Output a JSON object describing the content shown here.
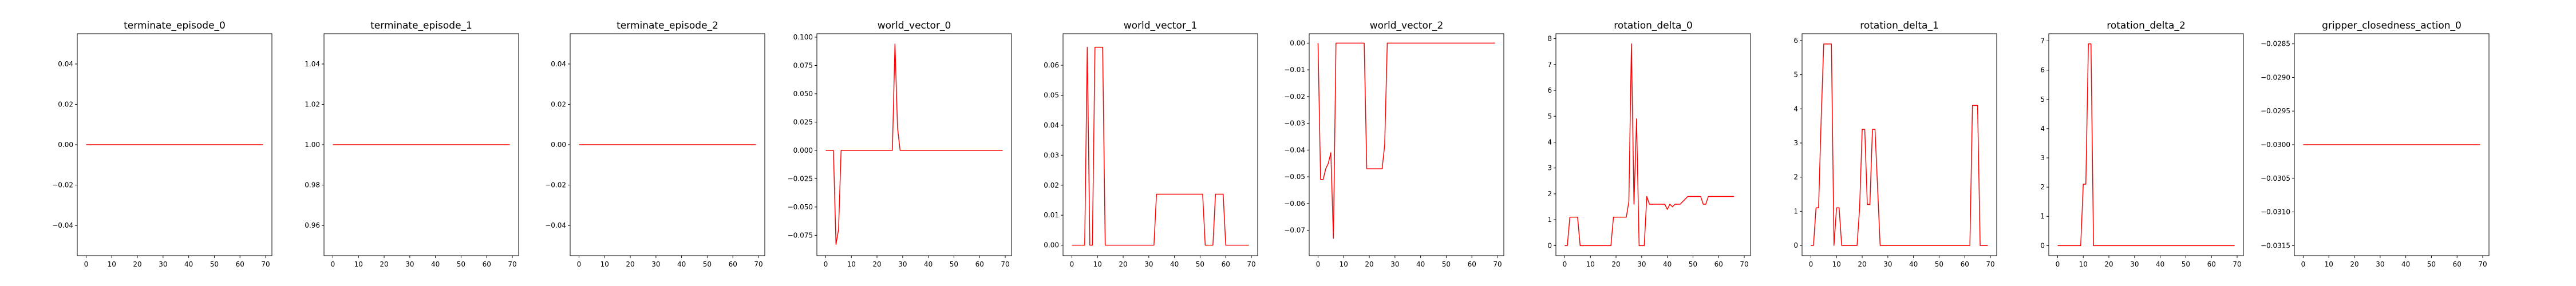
{
  "figure": {
    "line_color": "#ff0000"
  },
  "chart_data": [
    {
      "type": "line",
      "title": "terminate_episode_0",
      "xlabel": "",
      "ylabel": "",
      "xlim": [
        -3.45,
        72.45
      ],
      "ylim": [
        -0.055,
        0.055
      ],
      "xticks": [
        0,
        10,
        20,
        30,
        40,
        50,
        60,
        70
      ],
      "yticks": [
        -0.04,
        -0.02,
        0.0,
        0.02,
        0.04
      ],
      "ytick_labels": [
        "−0.04",
        "−0.02",
        "0.00",
        "0.02",
        "0.04"
      ],
      "series": [
        {
          "points": [
            [
              0,
              0
            ],
            [
              69,
              0
            ]
          ]
        }
      ]
    },
    {
      "type": "line",
      "title": "terminate_episode_1",
      "xlabel": "",
      "ylabel": "",
      "xlim": [
        -3.45,
        72.45
      ],
      "ylim": [
        0.945,
        1.055
      ],
      "xticks": [
        0,
        10,
        20,
        30,
        40,
        50,
        60,
        70
      ],
      "yticks": [
        0.96,
        0.98,
        1.0,
        1.02,
        1.04
      ],
      "ytick_labels": [
        "0.96",
        "0.98",
        "1.00",
        "1.02",
        "1.04"
      ],
      "series": [
        {
          "points": [
            [
              0,
              1
            ],
            [
              69,
              1
            ]
          ]
        }
      ]
    },
    {
      "type": "line",
      "title": "terminate_episode_2",
      "xlabel": "",
      "ylabel": "",
      "xlim": [
        -3.45,
        72.45
      ],
      "ylim": [
        -0.055,
        0.055
      ],
      "xticks": [
        0,
        10,
        20,
        30,
        40,
        50,
        60,
        70
      ],
      "yticks": [
        -0.04,
        -0.02,
        0.0,
        0.02,
        0.04
      ],
      "ytick_labels": [
        "−0.04",
        "−0.02",
        "0.00",
        "0.02",
        "0.04"
      ],
      "series": [
        {
          "points": [
            [
              0,
              0
            ],
            [
              69,
              0
            ]
          ]
        }
      ]
    },
    {
      "type": "line",
      "title": "world_vector_0",
      "xlabel": "",
      "ylabel": "",
      "xlim": [
        -3.45,
        72.45
      ],
      "ylim": [
        -0.093,
        0.103
      ],
      "xticks": [
        0,
        10,
        20,
        30,
        40,
        50,
        60,
        70
      ],
      "yticks": [
        -0.075,
        -0.05,
        -0.025,
        0.0,
        0.025,
        0.05,
        0.075,
        0.1
      ],
      "ytick_labels": [
        "−0.075",
        "−0.050",
        "−0.025",
        "0.000",
        "0.025",
        "0.050",
        "0.075",
        "0.100"
      ],
      "series": [
        {
          "points": [
            [
              0,
              0
            ],
            [
              3,
              0
            ],
            [
              4,
              -0.083
            ],
            [
              5,
              -0.07
            ],
            [
              6,
              0
            ],
            [
              26,
              0
            ],
            [
              27,
              0.094
            ],
            [
              28,
              0.02
            ],
            [
              29,
              0
            ],
            [
              69,
              0
            ]
          ]
        }
      ]
    },
    {
      "type": "line",
      "title": "world_vector_1",
      "xlabel": "",
      "ylabel": "",
      "xlim": [
        -3.45,
        72.45
      ],
      "ylim": [
        -0.0035,
        0.0705
      ],
      "xticks": [
        0,
        10,
        20,
        30,
        40,
        50,
        60,
        70
      ],
      "yticks": [
        0.0,
        0.01,
        0.02,
        0.03,
        0.04,
        0.05,
        0.06
      ],
      "ytick_labels": [
        "0.00",
        "0.01",
        "0.02",
        "0.03",
        "0.04",
        "0.05",
        "0.06"
      ],
      "series": [
        {
          "points": [
            [
              0,
              0
            ],
            [
              5,
              0
            ],
            [
              6,
              0.066
            ],
            [
              7,
              0
            ],
            [
              8,
              0
            ],
            [
              9,
              0.066
            ],
            [
              12,
              0.066
            ],
            [
              13,
              0
            ],
            [
              32,
              0
            ],
            [
              33,
              0.017
            ],
            [
              51,
              0.017
            ],
            [
              52,
              0
            ],
            [
              55,
              0
            ],
            [
              56,
              0.017
            ],
            [
              59,
              0.017
            ],
            [
              60,
              0
            ],
            [
              69,
              0
            ]
          ]
        }
      ]
    },
    {
      "type": "line",
      "title": "world_vector_2",
      "xlabel": "",
      "ylabel": "",
      "xlim": [
        -3.45,
        72.45
      ],
      "ylim": [
        -0.0795,
        0.0035
      ],
      "xticks": [
        0,
        10,
        20,
        30,
        40,
        50,
        60,
        70
      ],
      "yticks": [
        -0.07,
        -0.06,
        -0.05,
        -0.04,
        -0.03,
        -0.02,
        -0.01,
        0.0
      ],
      "ytick_labels": [
        "−0.07",
        "−0.06",
        "−0.05",
        "−0.04",
        "−0.03",
        "−0.02",
        "−0.01",
        "0.00"
      ],
      "series": [
        {
          "points": [
            [
              0,
              0
            ],
            [
              1,
              -0.051
            ],
            [
              2,
              -0.051
            ],
            [
              3,
              -0.047
            ],
            [
              4,
              -0.045
            ],
            [
              5,
              -0.041
            ],
            [
              6,
              -0.073
            ],
            [
              7,
              0
            ],
            [
              18,
              0
            ],
            [
              19,
              -0.047
            ],
            [
              25,
              -0.047
            ],
            [
              26,
              -0.038
            ],
            [
              27,
              0
            ],
            [
              69,
              0
            ]
          ]
        }
      ]
    },
    {
      "type": "line",
      "title": "rotation_delta_0",
      "xlabel": "",
      "ylabel": "",
      "xlim": [
        -3.45,
        72.45
      ],
      "ylim": [
        -0.39,
        8.19
      ],
      "xticks": [
        0,
        10,
        20,
        30,
        40,
        50,
        60,
        70
      ],
      "yticks": [
        0,
        1,
        2,
        3,
        4,
        5,
        6,
        7,
        8
      ],
      "ytick_labels": [
        "0",
        "1",
        "2",
        "3",
        "4",
        "5",
        "6",
        "7",
        "8"
      ],
      "series": [
        {
          "points": [
            [
              0,
              0
            ],
            [
              1,
              0
            ],
            [
              2,
              1.1
            ],
            [
              5,
              1.1
            ],
            [
              6,
              0
            ],
            [
              18,
              0
            ],
            [
              19,
              1.1
            ],
            [
              24,
              1.1
            ],
            [
              25,
              1.7
            ],
            [
              26,
              7.8
            ],
            [
              27,
              1.6
            ],
            [
              28,
              4.9
            ],
            [
              29,
              0
            ],
            [
              31,
              0
            ],
            [
              32,
              1.9
            ],
            [
              33,
              1.6
            ],
            [
              39,
              1.6
            ],
            [
              40,
              1.4
            ],
            [
              41,
              1.6
            ],
            [
              42,
              1.5
            ],
            [
              43,
              1.6
            ],
            [
              45,
              1.6
            ],
            [
              48,
              1.9
            ],
            [
              53,
              1.9
            ],
            [
              54,
              1.6
            ],
            [
              55,
              1.6
            ],
            [
              56,
              1.9
            ],
            [
              66,
              1.9
            ]
          ]
        }
      ]
    },
    {
      "type": "line",
      "title": "rotation_delta_1",
      "xlabel": "",
      "ylabel": "",
      "xlim": [
        -3.45,
        72.45
      ],
      "ylim": [
        -0.3,
        6.2
      ],
      "xticks": [
        0,
        10,
        20,
        30,
        40,
        50,
        60,
        70
      ],
      "yticks": [
        0,
        1,
        2,
        3,
        4,
        5,
        6
      ],
      "ytick_labels": [
        "0",
        "1",
        "2",
        "3",
        "4",
        "5",
        "6"
      ],
      "series": [
        {
          "points": [
            [
              0,
              0
            ],
            [
              1,
              0
            ],
            [
              2,
              1.1
            ],
            [
              3,
              1.1
            ],
            [
              4,
              3.7
            ],
            [
              5,
              5.9
            ],
            [
              8,
              5.9
            ],
            [
              9,
              0
            ],
            [
              10,
              1.1
            ],
            [
              11,
              1.1
            ],
            [
              12,
              0
            ],
            [
              18,
              0
            ],
            [
              19,
              1.1
            ],
            [
              20,
              3.4
            ],
            [
              21,
              3.4
            ],
            [
              22,
              1.2
            ],
            [
              23,
              1.2
            ],
            [
              24,
              3.4
            ],
            [
              25,
              3.4
            ],
            [
              27,
              0
            ],
            [
              62,
              0
            ],
            [
              63,
              4.1
            ],
            [
              65,
              4.1
            ],
            [
              66,
              0
            ],
            [
              69,
              0
            ]
          ]
        }
      ]
    },
    {
      "type": "line",
      "title": "rotation_delta_2",
      "xlabel": "",
      "ylabel": "",
      "xlim": [
        -3.45,
        72.45
      ],
      "ylim": [
        -0.345,
        7.245
      ],
      "xticks": [
        0,
        10,
        20,
        30,
        40,
        50,
        60,
        70
      ],
      "yticks": [
        0,
        1,
        2,
        3,
        4,
        5,
        6,
        7
      ],
      "ytick_labels": [
        "0",
        "1",
        "2",
        "3",
        "4",
        "5",
        "6",
        "7"
      ],
      "series": [
        {
          "points": [
            [
              0,
              0
            ],
            [
              9,
              0
            ],
            [
              10,
              2.1
            ],
            [
              11,
              2.1
            ],
            [
              12,
              6.9
            ],
            [
              13,
              6.9
            ],
            [
              14,
              0
            ],
            [
              69,
              0
            ]
          ]
        }
      ]
    },
    {
      "type": "line",
      "title": "gripper_closedness_action_0",
      "xlabel": "",
      "ylabel": "",
      "xlim": [
        -3.45,
        72.45
      ],
      "ylim": [
        -0.03165,
        -0.02835
      ],
      "xticks": [
        0,
        10,
        20,
        30,
        40,
        50,
        60,
        70
      ],
      "yticks": [
        -0.0315,
        -0.031,
        -0.0305,
        -0.03,
        -0.0295,
        -0.029,
        -0.0285
      ],
      "ytick_labels": [
        "−0.0315",
        "−0.0310",
        "−0.0305",
        "−0.0300",
        "−0.0295",
        "−0.0290",
        "−0.0285"
      ],
      "series": [
        {
          "points": [
            [
              0,
              -0.03
            ],
            [
              69,
              -0.03
            ]
          ]
        }
      ]
    }
  ]
}
